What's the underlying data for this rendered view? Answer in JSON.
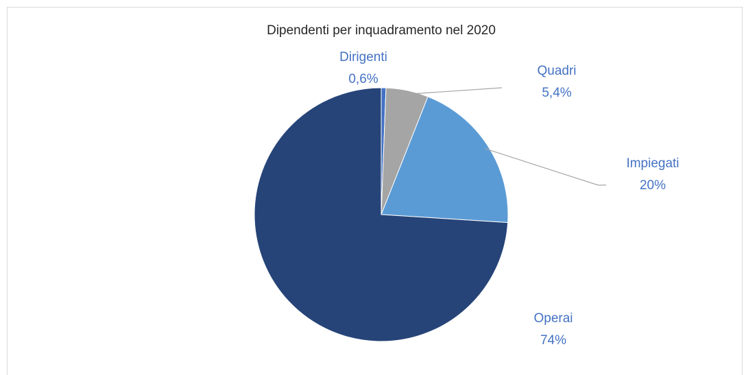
{
  "chart_data": {
    "type": "pie",
    "title": "Dipendenti per inquadramento nel 2020",
    "categories": [
      "Dirigenti",
      "Quadri",
      "Impiegati",
      "Operai"
    ],
    "values": [
      0.6,
      5.4,
      20,
      74
    ],
    "value_labels": [
      "0,6%",
      "5,4%",
      "20%",
      "74%"
    ],
    "colors": [
      "#4472c4",
      "#a5a5a5",
      "#5b9bd5",
      "#264478"
    ]
  }
}
